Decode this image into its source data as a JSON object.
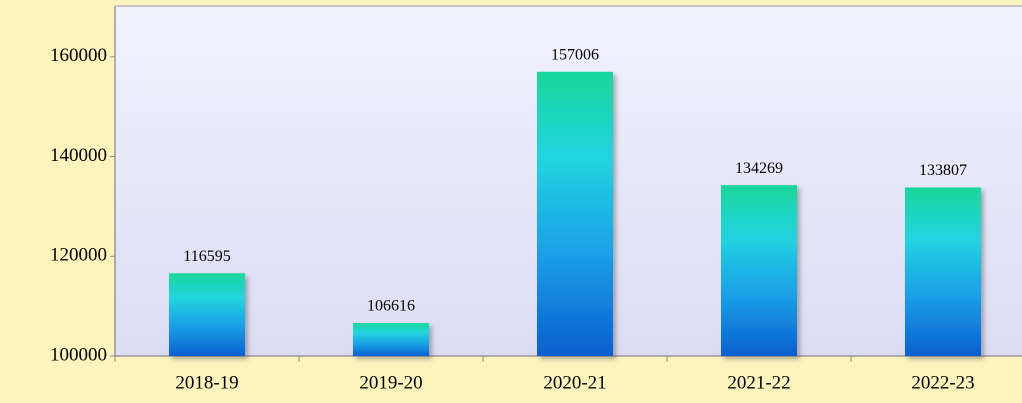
{
  "chart_data": {
    "type": "bar",
    "categories": [
      "2018-19",
      "2019-20",
      "2020-21",
      "2021-22",
      "2022-23"
    ],
    "values": [
      116595,
      106616,
      157006,
      134269,
      133807
    ],
    "ylim": [
      100000,
      170000
    ],
    "yticks": [
      100000,
      120000,
      140000,
      160000
    ],
    "grid": false
  }
}
